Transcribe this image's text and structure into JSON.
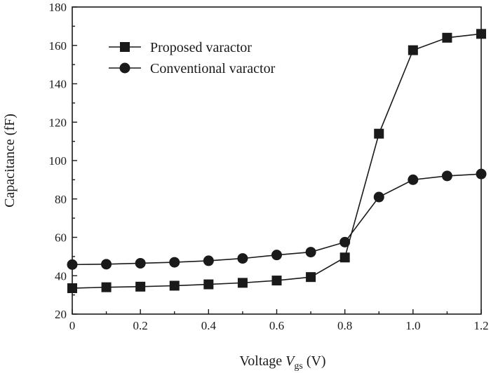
{
  "chart_data": {
    "type": "line",
    "title": "",
    "xlabel": {
      "prefix": "Voltage ",
      "var": "V",
      "sub": "gs",
      "suffix": " (V)"
    },
    "ylabel": "Capacitance (fF)",
    "xlim": [
      0,
      1.2
    ],
    "ylim": [
      20,
      180
    ],
    "xticks": [
      0,
      0.2,
      0.4,
      0.6,
      0.8,
      1.0,
      1.2
    ],
    "xtick_labels": [
      "0",
      "0.2",
      "0.4",
      "0.6",
      "0.8",
      "1.0",
      "1.2"
    ],
    "yticks": [
      20,
      40,
      60,
      80,
      100,
      120,
      140,
      160,
      180
    ],
    "ytick_labels": [
      "20",
      "40",
      "60",
      "80",
      "100",
      "120",
      "140",
      "160",
      "180"
    ],
    "grid": false,
    "legend_position": "top-left",
    "x": [
      0,
      0.1,
      0.2,
      0.3,
      0.4,
      0.5,
      0.6,
      0.7,
      0.8,
      0.9,
      1.0,
      1.1,
      1.2
    ],
    "series": [
      {
        "name": "Proposed varactor",
        "marker": "square",
        "color": "#1a1a1a",
        "values": [
          33.5,
          34,
          34.3,
          34.8,
          35.5,
          36.3,
          37.5,
          39.3,
          49.5,
          114,
          157.5,
          164,
          166
        ]
      },
      {
        "name": "Conventional varactor",
        "marker": "circle",
        "color": "#1a1a1a",
        "values": [
          45.8,
          46,
          46.5,
          47,
          47.8,
          49,
          50.8,
          52.3,
          57.5,
          81,
          90,
          92,
          93
        ]
      }
    ]
  }
}
